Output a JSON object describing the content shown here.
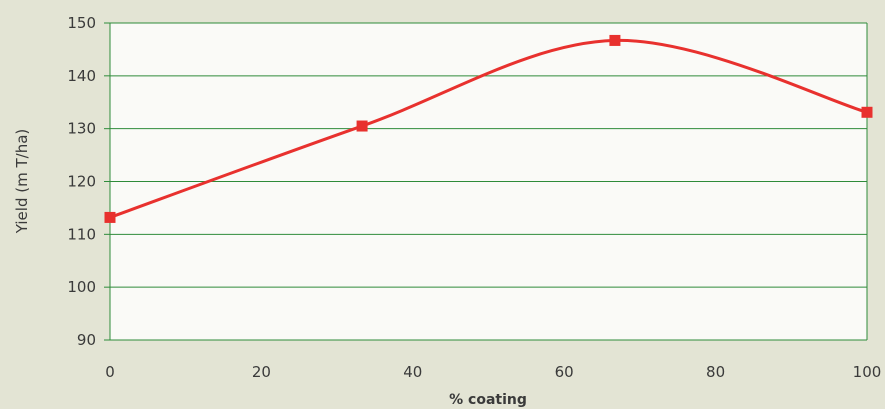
{
  "chart_data": {
    "type": "line",
    "title": "",
    "xlabel": "% coating",
    "ylabel": "Yield (m T/ha)",
    "xlim": [
      0,
      100
    ],
    "ylim": [
      90,
      150
    ],
    "x_ticks": [
      0,
      20,
      40,
      60,
      80,
      100
    ],
    "y_ticks": [
      90,
      100,
      110,
      120,
      130,
      140,
      150
    ],
    "grid": true,
    "smooth": true,
    "series": [
      {
        "color": "#e8312e",
        "x": [
          0,
          33.3,
          66.7,
          100
        ],
        "y": [
          113.2,
          130.5,
          146.7,
          133.1
        ]
      }
    ],
    "colors": {
      "background": "#e3e4d4",
      "plot_area": "#fafaf7",
      "grid": "#2e8b3a",
      "line": "#e8312e"
    }
  }
}
